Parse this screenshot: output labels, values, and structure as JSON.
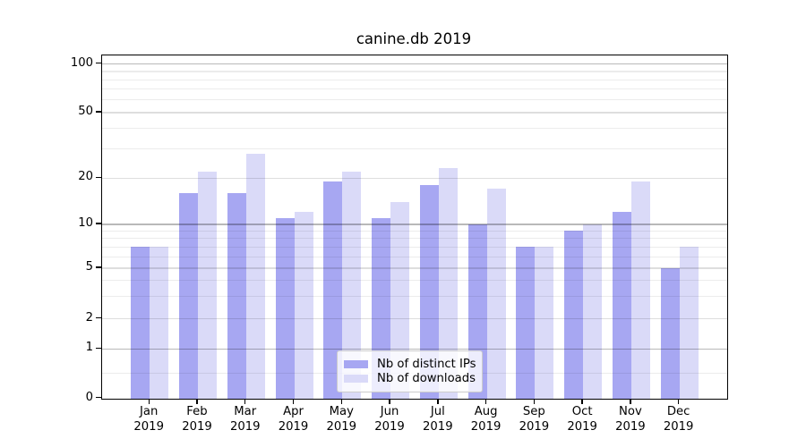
{
  "title": "canine.db 2019",
  "chart_data": {
    "type": "bar",
    "title": "canine.db 2019",
    "x_months": [
      "Jan",
      "Feb",
      "Mar",
      "Apr",
      "May",
      "Jun",
      "Jul",
      "Aug",
      "Sep",
      "Oct",
      "Nov",
      "Dec"
    ],
    "x_year": "2019",
    "series": [
      {
        "name": "Nb of distinct IPs",
        "color": "#a7a7f2",
        "values": [
          7,
          16,
          16,
          11,
          19,
          11,
          18,
          10,
          7,
          9,
          12,
          5
        ]
      },
      {
        "name": "Nb of downloads",
        "color": "#dadaf8",
        "values": [
          7,
          22,
          28,
          12,
          22,
          14,
          23,
          17,
          7,
          10,
          19,
          7
        ]
      }
    ],
    "y_scale": "symlog",
    "y_ticks": [
      100,
      50,
      20,
      10,
      5,
      2,
      1,
      0
    ],
    "y_minor_ticks": [
      0.5,
      3,
      4,
      6,
      7,
      8,
      9,
      30,
      40,
      60,
      70,
      80,
      90
    ],
    "ylim": [
      0,
      120
    ],
    "grid": true,
    "legend_position": "lower center"
  },
  "colors": {
    "axis": "#000000",
    "grid_major": "#b9b9b9",
    "grid_mid": "#dedede",
    "grid_minor": "#ececec",
    "legend_border": "#cccccc"
  }
}
